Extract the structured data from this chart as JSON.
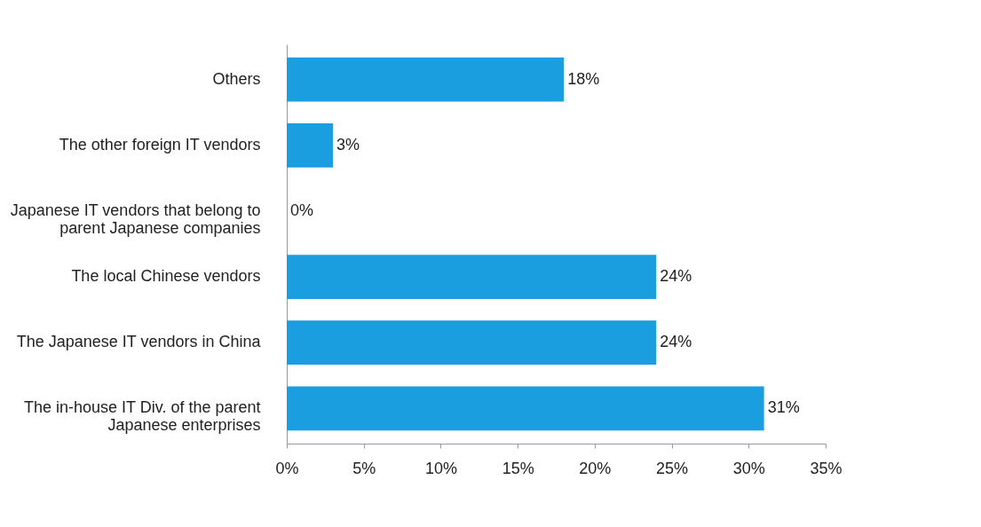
{
  "chart_data": {
    "type": "bar",
    "orientation": "horizontal",
    "categories": [
      "Others",
      "The other foreign IT vendors",
      "Japanese IT vendors that belong to parent Japanese companies",
      "The local Chinese vendors",
      "The Japanese IT vendors in China",
      "The in-house IT Div. of the parent Japanese enterprises"
    ],
    "values": [
      18,
      3,
      0,
      24,
      24,
      31
    ],
    "value_labels": [
      "18%",
      "3%",
      "0%",
      "24%",
      "24%",
      "31%"
    ],
    "color": "#1a9ee0",
    "xlim": [
      0,
      35
    ],
    "xticks": [
      {
        "value": 0,
        "label": "0%"
      },
      {
        "value": 5,
        "label": "5%"
      },
      {
        "value": 10,
        "label": "10%"
      },
      {
        "value": 15,
        "label": "15%"
      },
      {
        "value": 20,
        "label": "20%"
      },
      {
        "value": 25,
        "label": "25%"
      },
      {
        "value": 30,
        "label": "30%"
      },
      {
        "value": 35,
        "label": "35%"
      }
    ],
    "grid": false
  }
}
